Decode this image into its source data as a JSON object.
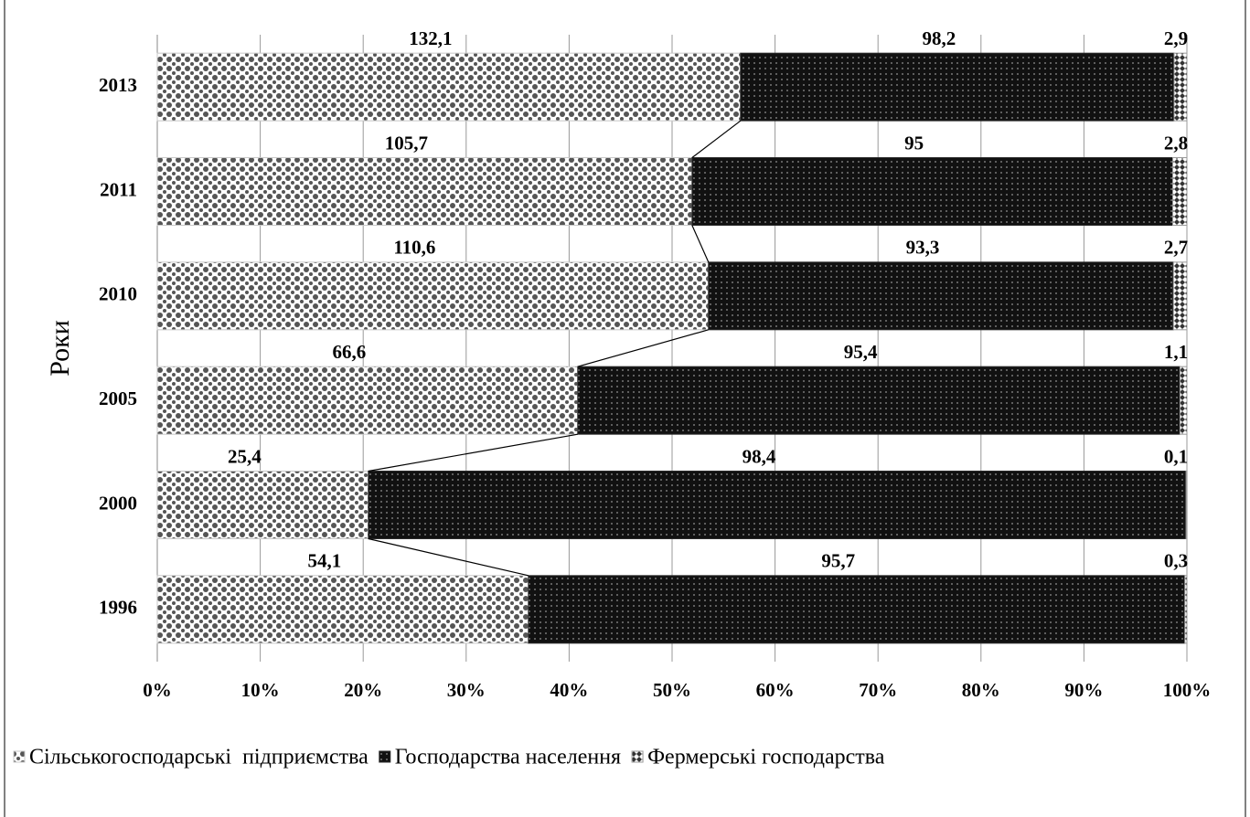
{
  "chart_data": {
    "type": "bar",
    "orientation": "horizontal",
    "stacking": "percent",
    "y_label": "Роки",
    "categories": [
      "2013",
      "2011",
      "2010",
      "2005",
      "2000",
      "1996"
    ],
    "series": [
      {
        "name": "Сільськогосподарські  підприємства",
        "color": "#c8c8c8",
        "values": [
          132.1,
          105.7,
          110.6,
          66.6,
          25.4,
          54.1
        ],
        "value_labels": [
          "132,1",
          "105,7",
          "110,6",
          "66,6",
          "25,4",
          "54,1"
        ]
      },
      {
        "name": "Господарства населення",
        "color": "#2a2a2a",
        "values": [
          98.2,
          95,
          93.3,
          95.4,
          98.4,
          95.7
        ],
        "value_labels": [
          "98,2",
          "95",
          "93,3",
          "95,4",
          "98,4",
          "95,7"
        ]
      },
      {
        "name": "Фермерські господарства",
        "color": "#9a9a9a",
        "values": [
          2.9,
          2.8,
          2.7,
          1.1,
          0.1,
          0.3
        ],
        "value_labels": [
          "2,9",
          "2,8",
          "2,7",
          "1,1",
          "0,1",
          "0,3"
        ]
      }
    ],
    "xlim": [
      0,
      100
    ],
    "xticks": [
      {
        "value": 0,
        "label": "0%"
      },
      {
        "value": 10,
        "label": "10%"
      },
      {
        "value": 20,
        "label": "20%"
      },
      {
        "value": 30,
        "label": "30%"
      },
      {
        "value": 40,
        "label": "40%"
      },
      {
        "value": 50,
        "label": "50%"
      },
      {
        "value": 60,
        "label": "60%"
      },
      {
        "value": 70,
        "label": "70%"
      },
      {
        "value": 80,
        "label": "80%"
      },
      {
        "value": 90,
        "label": "90%"
      },
      {
        "value": 100,
        "label": "100%"
      }
    ],
    "grid": true,
    "series_lines": true,
    "legend": "bottom"
  }
}
